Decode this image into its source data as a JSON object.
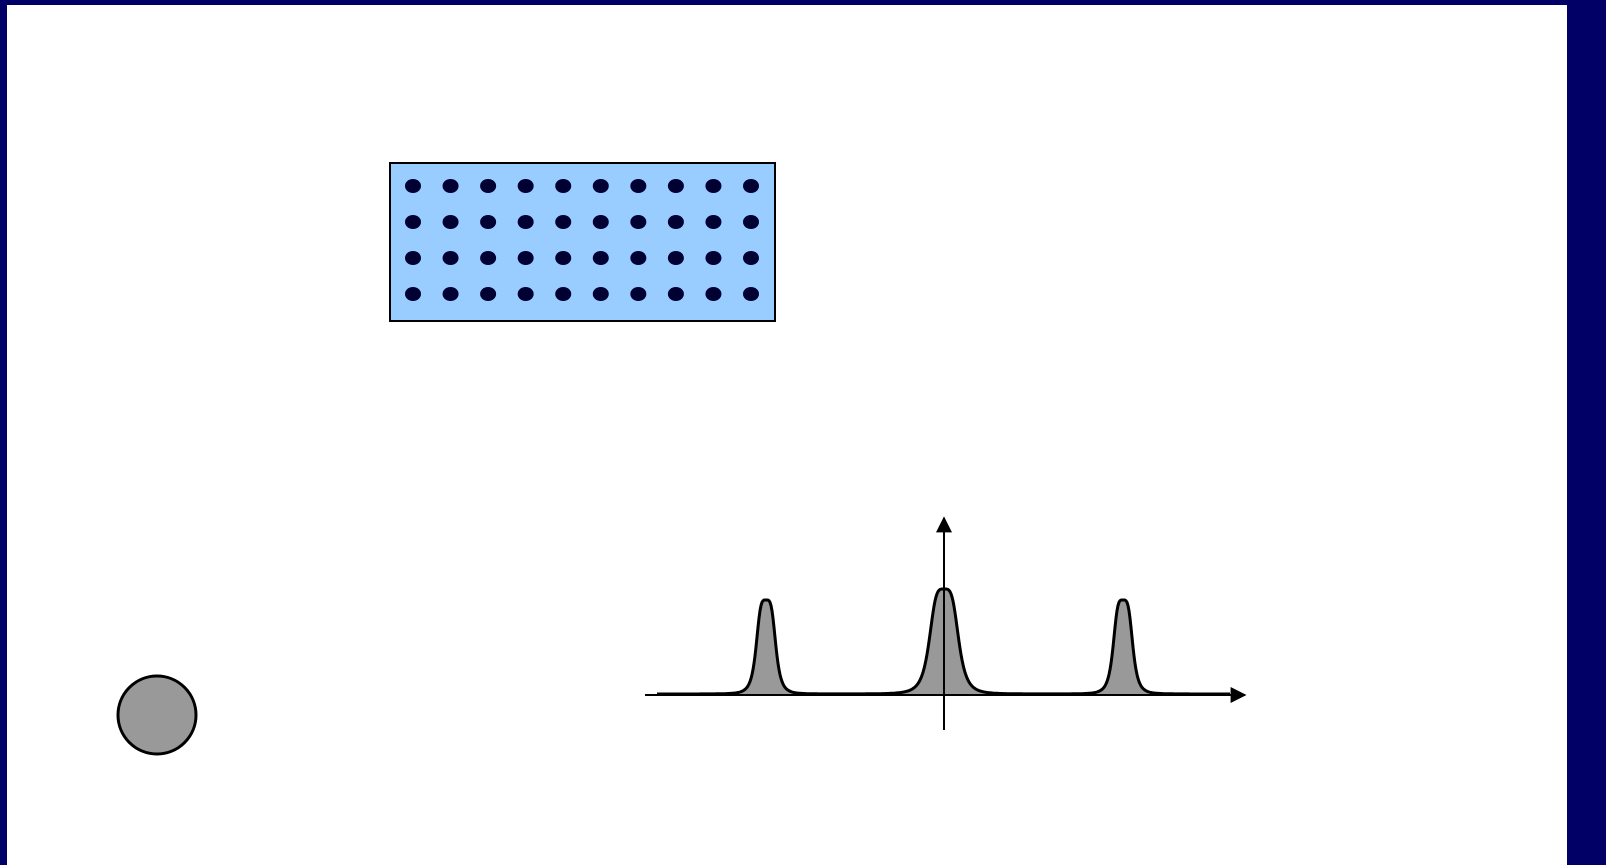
{
  "slide": {
    "frame_color": "#000066",
    "background_color": "#ffffff"
  },
  "lattice": {
    "fill_color": "#99ccff",
    "border_color": "#000000",
    "dot_color": "#000033",
    "rows": 4,
    "columns": 10
  },
  "particle": {
    "fill_color": "#999999",
    "border_color": "#000000"
  },
  "spectrum": {
    "fill_color": "#999999",
    "line_color": "#000000",
    "peak_count": 3
  }
}
